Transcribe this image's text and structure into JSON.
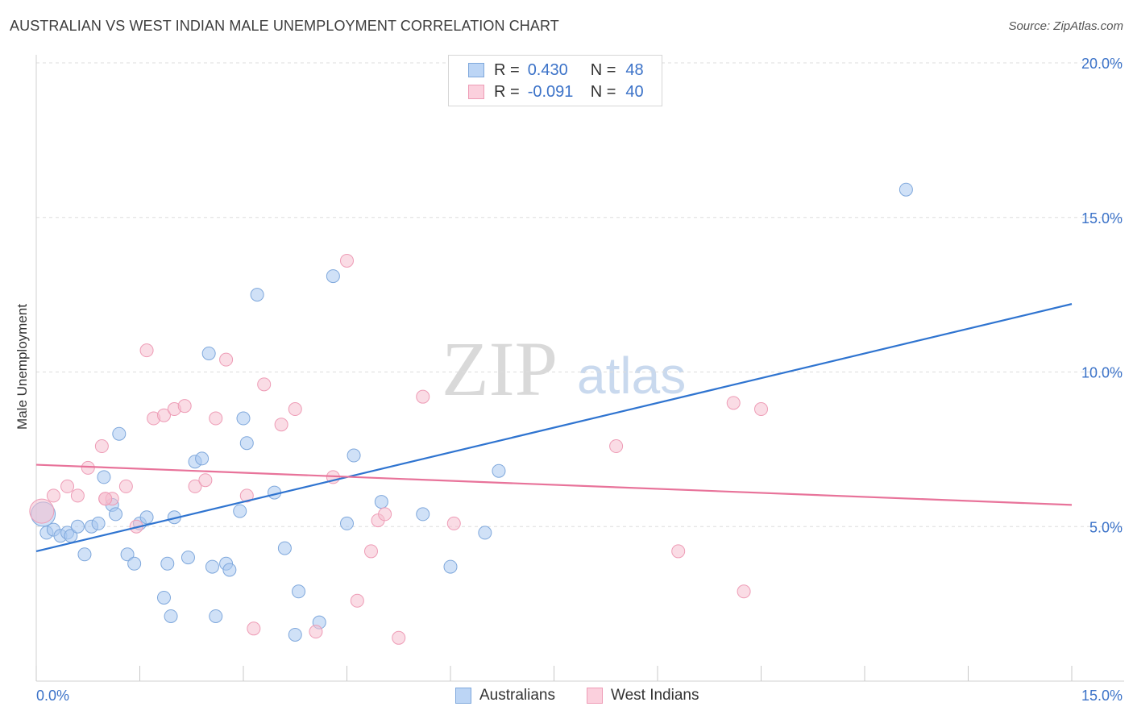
{
  "title": "AUSTRALIAN VS WEST INDIAN MALE UNEMPLOYMENT CORRELATION CHART",
  "source": "Source: ZipAtlas.com",
  "watermark": {
    "zip": "ZIP",
    "atlas": "atlas"
  },
  "legend_top": {
    "rows": [
      {
        "r_label": "R = ",
        "r_value": "0.430",
        "n_label": "N = ",
        "n_value": "48"
      },
      {
        "r_label": "R = ",
        "r_value": "-0.091",
        "n_label": "N = ",
        "n_value": "40"
      }
    ]
  },
  "legend_bottom": [
    "Australians",
    "West Indians"
  ],
  "colors": {
    "australians_fill": "#a9c8f0",
    "australians_stroke": "#7fa8dc",
    "australians_line": "#2f74d0",
    "westindians_fill": "#f6bfd0",
    "westindians_stroke": "#ee9cb6",
    "westindians_line": "#e8739a",
    "tick_label": "#3b72c8",
    "grid": "#dddddd"
  },
  "chart_data": {
    "type": "scatter",
    "title": "AUSTRALIAN VS WEST INDIAN MALE UNEMPLOYMENT CORRELATION CHART",
    "xlabel": "",
    "ylabel": "Male Unemployment",
    "xlim": [
      0,
      15
    ],
    "ylim": [
      0,
      20
    ],
    "x_tick_labels": [
      {
        "value": 0,
        "label": "0.0%"
      },
      {
        "value": 15,
        "label": "15.0%"
      }
    ],
    "y_tick_labels": [
      {
        "value": 5,
        "label": "5.0%"
      },
      {
        "value": 10,
        "label": "10.0%"
      },
      {
        "value": 15,
        "label": "15.0%"
      },
      {
        "value": 20,
        "label": "20.0%"
      }
    ],
    "series": [
      {
        "name": "Australians",
        "r": 0.43,
        "n": 48,
        "trend": {
          "x": [
            0,
            15
          ],
          "y": [
            4.2,
            12.2
          ]
        },
        "points": [
          [
            0.1,
            5.4
          ],
          [
            0.15,
            4.8
          ],
          [
            0.25,
            4.9
          ],
          [
            0.35,
            4.7
          ],
          [
            0.45,
            4.8
          ],
          [
            0.5,
            4.7
          ],
          [
            0.6,
            5.0
          ],
          [
            0.7,
            4.1
          ],
          [
            0.8,
            5.0
          ],
          [
            0.9,
            5.1
          ],
          [
            0.98,
            6.6
          ],
          [
            1.1,
            5.7
          ],
          [
            1.15,
            5.4
          ],
          [
            1.2,
            8.0
          ],
          [
            1.32,
            4.1
          ],
          [
            1.42,
            3.8
          ],
          [
            1.5,
            5.1
          ],
          [
            1.6,
            5.3
          ],
          [
            1.85,
            2.7
          ],
          [
            1.9,
            3.8
          ],
          [
            1.95,
            2.1
          ],
          [
            2.0,
            5.3
          ],
          [
            2.2,
            4.0
          ],
          [
            2.3,
            7.1
          ],
          [
            2.4,
            7.2
          ],
          [
            2.5,
            10.6
          ],
          [
            2.55,
            3.7
          ],
          [
            2.6,
            2.1
          ],
          [
            2.75,
            3.8
          ],
          [
            2.8,
            3.6
          ],
          [
            2.95,
            5.5
          ],
          [
            3.0,
            8.5
          ],
          [
            3.05,
            7.7
          ],
          [
            3.2,
            12.5
          ],
          [
            3.45,
            6.1
          ],
          [
            3.6,
            4.3
          ],
          [
            3.75,
            1.5
          ],
          [
            3.8,
            2.9
          ],
          [
            4.1,
            1.9
          ],
          [
            4.3,
            13.1
          ],
          [
            4.5,
            5.1
          ],
          [
            4.6,
            7.3
          ],
          [
            5.0,
            5.8
          ],
          [
            5.6,
            5.4
          ],
          [
            6.0,
            3.7
          ],
          [
            6.5,
            4.8
          ],
          [
            6.7,
            6.8
          ],
          [
            12.6,
            15.9
          ]
        ]
      },
      {
        "name": "West Indians",
        "r": -0.091,
        "n": 40,
        "trend": {
          "x": [
            0,
            15
          ],
          "y": [
            7.0,
            5.7
          ]
        },
        "points": [
          [
            0.08,
            5.5
          ],
          [
            0.25,
            6.0
          ],
          [
            0.45,
            6.3
          ],
          [
            0.6,
            6.0
          ],
          [
            0.75,
            6.9
          ],
          [
            0.95,
            7.6
          ],
          [
            1.0,
            5.9
          ],
          [
            1.1,
            5.9
          ],
          [
            1.3,
            6.3
          ],
          [
            1.45,
            5.0
          ],
          [
            1.6,
            10.7
          ],
          [
            1.7,
            8.5
          ],
          [
            1.85,
            8.6
          ],
          [
            2.0,
            8.8
          ],
          [
            2.15,
            8.9
          ],
          [
            2.3,
            6.3
          ],
          [
            2.45,
            6.5
          ],
          [
            2.6,
            8.5
          ],
          [
            2.75,
            10.4
          ],
          [
            3.05,
            6.0
          ],
          [
            3.15,
            1.7
          ],
          [
            3.3,
            9.6
          ],
          [
            3.55,
            8.3
          ],
          [
            3.75,
            8.8
          ],
          [
            4.05,
            1.6
          ],
          [
            4.3,
            6.6
          ],
          [
            4.5,
            13.6
          ],
          [
            4.65,
            2.6
          ],
          [
            4.85,
            4.2
          ],
          [
            4.95,
            5.2
          ],
          [
            5.05,
            5.4
          ],
          [
            5.25,
            1.4
          ],
          [
            5.6,
            9.2
          ],
          [
            6.05,
            5.1
          ],
          [
            8.4,
            7.6
          ],
          [
            9.3,
            4.2
          ],
          [
            10.1,
            9.0
          ],
          [
            10.25,
            2.9
          ],
          [
            10.5,
            8.8
          ],
          [
            1.0,
            5.9
          ]
        ]
      }
    ]
  }
}
